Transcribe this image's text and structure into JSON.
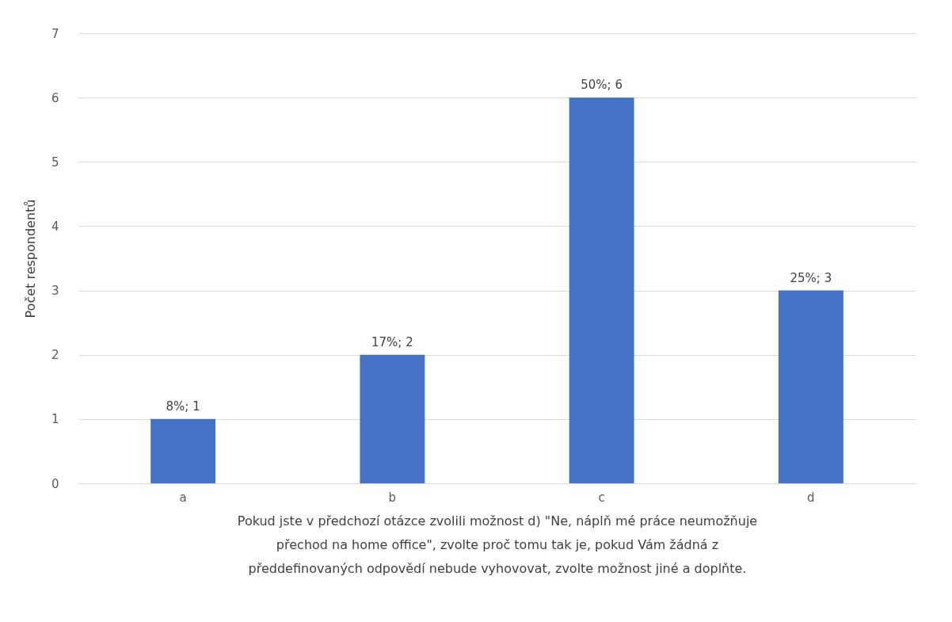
{
  "chart_data": {
    "type": "bar",
    "categories": [
      "a",
      "b",
      "c",
      "d"
    ],
    "values": [
      1,
      2,
      6,
      3
    ],
    "color": "#4472c4",
    "value_labels": [
      "8%; 1",
      "17%; 2",
      "50%; 6",
      "25%; 3"
    ],
    "ylabel": "Počet respondentů",
    "xlabel": "Pokud jste v předchozí otázce zvolili možnost d) \"Ne, náplň mé práce neumožňuje přechod na home office\", zvolte proč tomu tak je, pokud Vám žádná z předdefinovaných odpovědí nebude vyhovovat, zvolte možnost jiné a doplňte.",
    "ylim": [
      0,
      7
    ],
    "yticks": [
      0,
      1,
      2,
      3,
      4,
      5,
      6,
      7
    ],
    "grid": "y"
  }
}
